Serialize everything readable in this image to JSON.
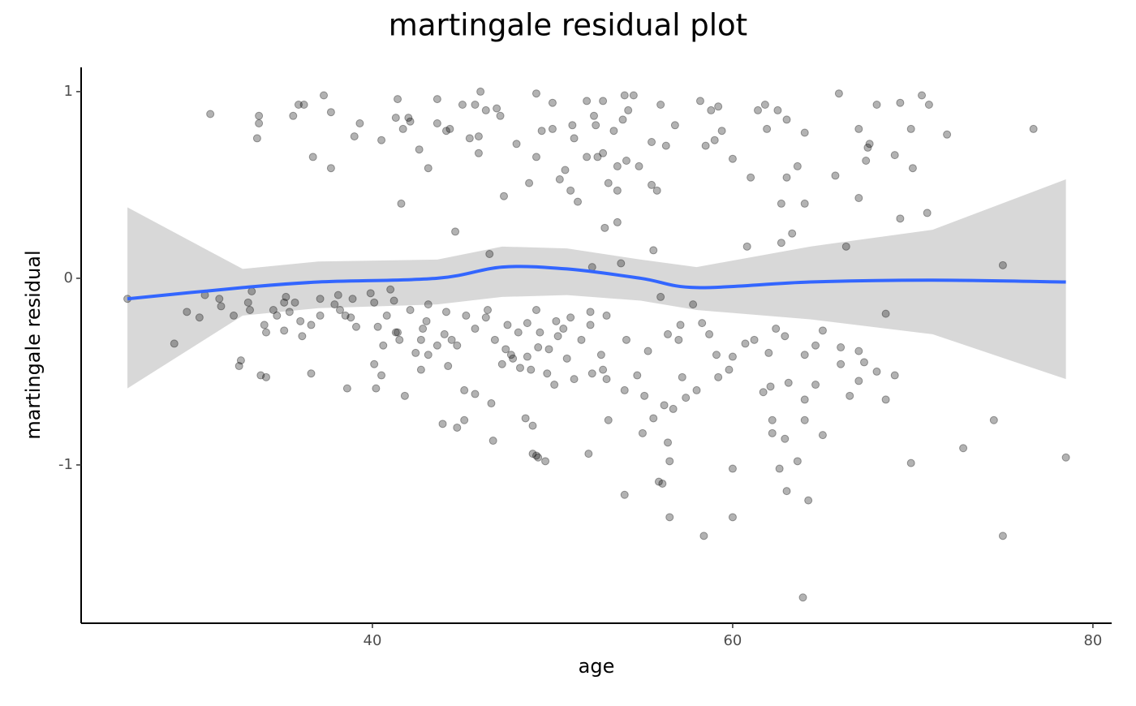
{
  "chart_data": {
    "type": "scatter",
    "title": "martingale residual plot",
    "x_label": "age",
    "y_label": "martingale residual",
    "xlim": [
      23.83,
      81.04
    ],
    "ylim": [
      -1.848,
      1.13
    ],
    "xticks": [
      40,
      60,
      80
    ],
    "yticks": [
      1,
      0,
      -1
    ],
    "point_color": "#000000",
    "x": [
      26.4,
      31.0,
      29.0,
      29.7,
      30.4,
      30.7,
      31.5,
      31.6,
      32.3,
      32.6,
      32.7,
      33.1,
      33.2,
      33.3,
      33.6,
      33.7,
      33.7,
      33.8,
      34.1,
      34.0,
      34.1,
      34.5,
      34.7,
      35.1,
      35.1,
      35.2,
      35.4,
      35.6,
      35.7,
      35.9,
      36.0,
      36.2,
      36.1,
      36.6,
      36.6,
      36.7,
      37.1,
      37.1,
      37.3,
      37.7,
      37.7,
      37.9,
      38.1,
      38.2,
      38.5,
      38.6,
      38.8,
      38.9,
      39.0,
      39.1,
      39.3,
      39.9,
      40.1,
      40.1,
      40.2,
      40.3,
      40.5,
      40.5,
      40.6,
      40.8,
      41.0,
      41.2,
      41.3,
      41.3,
      41.4,
      41.4,
      41.5,
      41.6,
      41.7,
      41.8,
      42.0,
      42.1,
      42.1,
      42.4,
      42.6,
      42.7,
      42.7,
      42.8,
      43.0,
      43.1,
      43.1,
      43.1,
      43.6,
      43.6,
      43.6,
      43.9,
      44.0,
      44.1,
      44.1,
      44.2,
      44.3,
      44.4,
      44.6,
      44.7,
      44.7,
      45.0,
      45.1,
      45.1,
      45.2,
      45.4,
      45.7,
      45.7,
      45.7,
      45.9,
      45.9,
      46.0,
      46.3,
      46.3,
      46.4,
      46.5,
      46.6,
      46.7,
      46.8,
      46.9,
      47.1,
      47.2,
      47.3,
      47.4,
      47.5,
      47.7,
      47.8,
      48.0,
      48.1,
      48.2,
      48.5,
      48.6,
      48.6,
      48.7,
      48.8,
      48.9,
      48.9,
      49.1,
      49.1,
      49.1,
      49.1,
      49.2,
      49.2,
      49.3,
      49.4,
      49.6,
      49.7,
      49.8,
      50.0,
      50.0,
      50.1,
      50.2,
      50.3,
      50.4,
      50.6,
      50.7,
      50.8,
      51.0,
      51.0,
      51.1,
      51.2,
      51.2,
      51.4,
      51.6,
      51.9,
      51.9,
      52.0,
      52.1,
      52.1,
      52.2,
      52.2,
      52.3,
      52.4,
      52.5,
      52.7,
      52.8,
      52.8,
      52.8,
      52.9,
      53.0,
      53.0,
      53.1,
      53.1,
      53.4,
      53.6,
      53.6,
      53.6,
      53.8,
      53.9,
      54.0,
      54.0,
      54.0,
      54.1,
      54.1,
      54.2,
      54.5,
      54.7,
      54.8,
      55.0,
      55.1,
      55.3,
      55.5,
      55.5,
      55.6,
      55.6,
      55.8,
      55.9,
      56.0,
      56.0,
      56.1,
      56.2,
      56.3,
      56.4,
      56.4,
      56.5,
      56.5,
      56.7,
      56.8,
      57.0,
      57.1,
      57.2,
      57.4,
      57.8,
      58.0,
      58.2,
      58.3,
      58.4,
      58.5,
      58.7,
      58.8,
      59.0,
      59.1,
      59.2,
      59.2,
      59.4,
      59.8,
      60.0,
      60.0,
      60.0,
      60.0,
      60.7,
      60.8,
      61.0,
      61.2,
      61.4,
      61.7,
      61.8,
      61.9,
      62.0,
      62.1,
      62.2,
      62.2,
      62.4,
      62.5,
      62.6,
      62.7,
      62.7,
      62.9,
      62.9,
      63.0,
      63.0,
      63.0,
      63.1,
      63.3,
      63.6,
      63.6,
      63.9,
      64.0,
      64.0,
      64.0,
      64.0,
      64.0,
      64.2,
      64.6,
      64.6,
      65.0,
      65.0,
      65.7,
      65.9,
      66.0,
      66.0,
      66.3,
      66.5,
      67.0,
      67.0,
      67.0,
      67.0,
      67.3,
      67.4,
      67.5,
      67.6,
      68.0,
      68.0,
      68.5,
      68.5,
      69.0,
      69.0,
      69.3,
      69.3,
      69.9,
      69.9,
      70.0,
      70.5,
      70.8,
      70.9,
      71.9,
      72.8,
      74.5,
      75.0,
      75.0,
      76.7,
      78.5
    ],
    "values": [
      -0.11,
      0.88,
      -0.35,
      -0.18,
      -0.21,
      -0.09,
      -0.11,
      -0.15,
      -0.2,
      -0.47,
      -0.44,
      -0.13,
      -0.17,
      -0.07,
      0.75,
      0.87,
      0.83,
      -0.52,
      -0.53,
      -0.25,
      -0.29,
      -0.17,
      -0.2,
      -0.28,
      -0.13,
      -0.1,
      -0.18,
      0.87,
      -0.13,
      0.93,
      -0.23,
      0.93,
      -0.31,
      -0.25,
      -0.51,
      0.65,
      -0.2,
      -0.11,
      0.98,
      0.59,
      0.89,
      -0.14,
      -0.09,
      -0.17,
      -0.2,
      -0.59,
      -0.21,
      -0.11,
      0.76,
      -0.26,
      0.83,
      -0.08,
      -0.13,
      -0.46,
      -0.59,
      -0.26,
      0.74,
      -0.52,
      -0.36,
      -0.2,
      -0.06,
      -0.12,
      -0.29,
      0.86,
      -0.29,
      0.96,
      -0.33,
      0.4,
      0.8,
      -0.63,
      0.86,
      0.84,
      -0.17,
      -0.4,
      0.69,
      -0.33,
      -0.49,
      -0.27,
      -0.23,
      -0.41,
      -0.14,
      0.59,
      0.96,
      0.83,
      -0.36,
      -0.78,
      -0.3,
      -0.18,
      0.79,
      -0.47,
      0.8,
      -0.33,
      0.25,
      -0.8,
      -0.36,
      0.93,
      -0.76,
      -0.6,
      -0.2,
      0.75,
      0.93,
      -0.27,
      -0.62,
      0.67,
      0.76,
      1.0,
      0.9,
      -0.21,
      -0.17,
      0.13,
      -0.67,
      -0.87,
      -0.33,
      0.91,
      0.87,
      -0.46,
      0.44,
      -0.38,
      -0.25,
      -0.41,
      -0.43,
      0.72,
      -0.29,
      -0.48,
      -0.75,
      -0.24,
      -0.42,
      0.51,
      -0.49,
      -0.79,
      -0.94,
      0.99,
      0.65,
      -0.17,
      -0.95,
      -0.37,
      -0.96,
      -0.29,
      0.79,
      -0.98,
      -0.51,
      -0.38,
      0.94,
      0.8,
      -0.57,
      -0.23,
      -0.31,
      0.53,
      -0.27,
      0.58,
      -0.43,
      -0.21,
      0.47,
      0.82,
      0.75,
      -0.54,
      0.41,
      -0.33,
      0.95,
      0.65,
      -0.94,
      -0.18,
      -0.25,
      0.06,
      -0.51,
      0.87,
      0.82,
      0.65,
      -0.41,
      -0.49,
      0.95,
      0.67,
      0.27,
      -0.2,
      -0.54,
      -0.76,
      0.51,
      0.79,
      0.6,
      0.47,
      0.3,
      0.08,
      0.85,
      0.98,
      -0.6,
      -1.16,
      0.63,
      -0.33,
      0.9,
      0.98,
      -0.52,
      0.6,
      -0.83,
      -0.63,
      -0.39,
      0.73,
      0.5,
      -0.75,
      0.15,
      0.47,
      -1.09,
      0.93,
      -0.1,
      -1.1,
      -0.68,
      0.71,
      -0.3,
      -0.88,
      -1.28,
      -0.98,
      -0.7,
      0.82,
      -0.33,
      -0.25,
      -0.53,
      -0.64,
      -0.14,
      -0.6,
      0.95,
      -0.24,
      -1.38,
      0.71,
      -0.3,
      0.9,
      0.74,
      -0.41,
      0.92,
      -0.53,
      0.79,
      -0.49,
      0.64,
      -0.42,
      -1.02,
      -1.28,
      -0.35,
      0.17,
      0.54,
      -0.33,
      0.9,
      -0.61,
      0.93,
      0.8,
      -0.4,
      -0.58,
      -0.76,
      -0.83,
      -0.27,
      0.9,
      -1.02,
      0.19,
      0.4,
      -0.31,
      -0.86,
      0.54,
      0.85,
      -1.14,
      -0.56,
      0.24,
      0.6,
      -0.98,
      -1.71,
      -0.41,
      -0.65,
      -0.76,
      0.78,
      0.4,
      -1.19,
      -0.36,
      -0.57,
      -0.28,
      -0.84,
      0.55,
      0.99,
      -0.46,
      -0.37,
      0.17,
      -0.63,
      0.8,
      0.43,
      -0.39,
      -0.55,
      -0.45,
      0.63,
      0.7,
      0.72,
      -0.5,
      0.93,
      -0.65,
      -0.19,
      0.66,
      -0.52,
      0.32,
      0.94,
      -0.99,
      0.8,
      0.59,
      0.98,
      0.35,
      0.93,
      0.77,
      -0.91,
      -0.76,
      -1.38,
      0.07,
      0.8,
      -0.96
    ],
    "smooth": {
      "color": "#3366ff",
      "band_color": "#d4d4d4",
      "x": [
        26.4,
        32.8,
        37.0,
        43.6,
        47.2,
        50.8,
        54.9,
        58.0,
        64.3,
        71.1,
        78.5
      ],
      "values": [
        -0.11,
        -0.05,
        -0.02,
        0.0,
        0.06,
        0.05,
        0.0,
        -0.05,
        -0.02,
        -0.01,
        -0.02
      ],
      "lower": [
        -0.59,
        -0.2,
        -0.16,
        -0.14,
        -0.1,
        -0.09,
        -0.12,
        -0.17,
        -0.22,
        -0.3,
        -0.54
      ],
      "upper": [
        0.38,
        0.05,
        0.09,
        0.1,
        0.17,
        0.16,
        0.1,
        0.06,
        0.17,
        0.26,
        0.53
      ]
    }
  }
}
